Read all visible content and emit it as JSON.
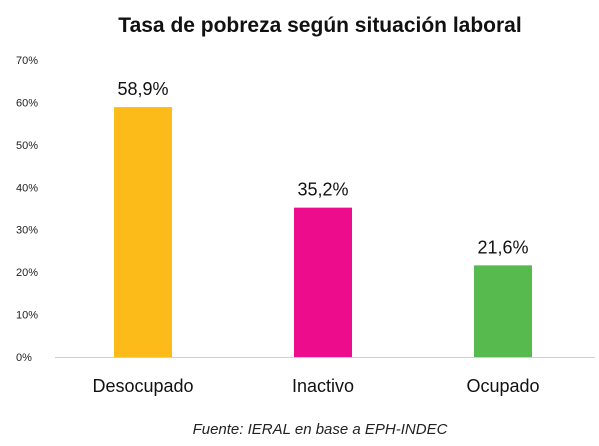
{
  "colors": {
    "background": "#ffffff",
    "axis": "#cfcfcf",
    "text": "#111111"
  },
  "chart_data": {
    "type": "bar",
    "title": "Tasa de pobreza según situación laboral",
    "xlabel": "",
    "ylabel": "",
    "categories": [
      "Desocupado",
      "Inactivo",
      "Ocupado"
    ],
    "values": [
      58.9,
      35.2,
      21.6
    ],
    "data_labels": [
      "58,9%",
      "35,2%",
      "21,6%"
    ],
    "bar_colors": [
      "#FDBB19",
      "#EC0C8C",
      "#56BA4F"
    ],
    "ylim": [
      0,
      70
    ],
    "yticks": [
      0,
      10,
      20,
      30,
      40,
      50,
      60,
      70
    ],
    "ytick_labels": [
      "0%",
      "10%",
      "20%",
      "30%",
      "40%",
      "50%",
      "60%",
      "70%"
    ],
    "grid": false,
    "legend": "none",
    "source": "Fuente: IERAL en base a EPH-INDEC"
  }
}
